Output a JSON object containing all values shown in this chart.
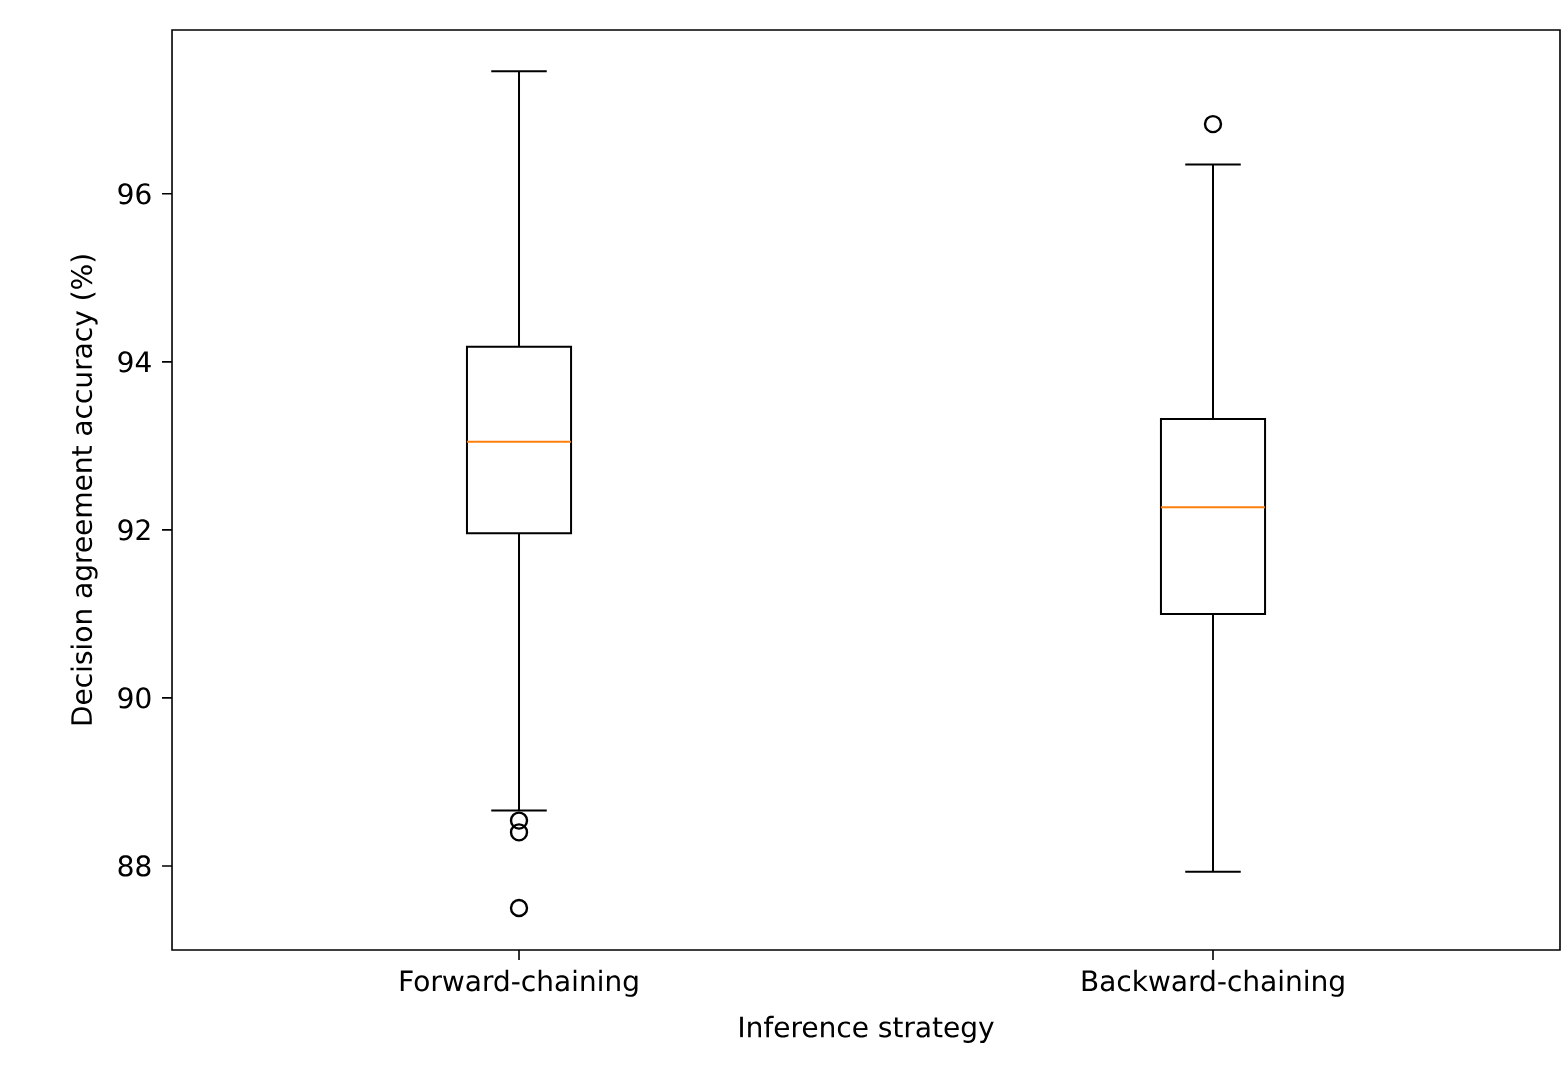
{
  "chart_data": {
    "type": "box",
    "xlabel": "Inference strategy",
    "ylabel": "Decision agreement accuracy (%)",
    "categories": [
      "Forward-chaining",
      "Backward-chaining"
    ],
    "series": [
      {
        "color": "#000000",
        "boxes": [
          {
            "low": 88.66,
            "q1": 91.96,
            "median": 93.05,
            "q3": 94.18,
            "high": 97.46,
            "outliers": [
              88.54,
              88.4,
              87.5
            ]
          },
          {
            "low": 87.93,
            "q1": 91.0,
            "median": 92.27,
            "q3": 93.32,
            "high": 96.35,
            "outliers": [
              96.83
            ]
          }
        ]
      }
    ],
    "ylim": [
      87.0,
      97.95
    ],
    "yticks": [
      88,
      90,
      92,
      94,
      96
    ],
    "grid": false
  }
}
